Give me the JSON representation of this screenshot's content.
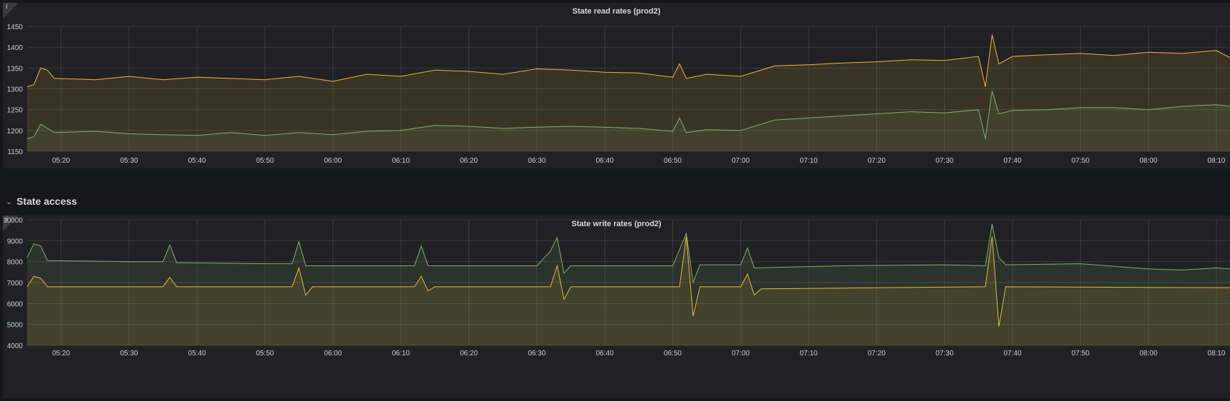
{
  "row": {
    "title": "State access"
  },
  "panels": [
    {
      "title": "State read rates (prod2)",
      "info_glyph": "i"
    },
    {
      "title": "State write rates (prod2)",
      "info_glyph": "i"
    }
  ],
  "chart_data": [
    {
      "type": "area",
      "title": "State read rates (prod2)",
      "x_ticks": [
        "05:20",
        "05:30",
        "05:40",
        "05:50",
        "06:00",
        "06:10",
        "06:20",
        "06:30",
        "06:40",
        "06:50",
        "07:00",
        "07:10",
        "07:20",
        "07:30",
        "07:40",
        "07:50",
        "08:00",
        "08:10"
      ],
      "x_range": [
        "05:15",
        "08:12"
      ],
      "y_ticks": [
        1150,
        1200,
        1250,
        1300,
        1350,
        1400,
        1450
      ],
      "ylim": [
        1150,
        1450
      ],
      "grid": true,
      "series": [
        {
          "color": "#eab839",
          "points": [
            [
              "05:15",
              1305
            ],
            [
              "05:16",
              1310
            ],
            [
              "05:17",
              1350
            ],
            [
              "05:18",
              1345
            ],
            [
              "05:19",
              1325
            ],
            [
              "05:25",
              1322
            ],
            [
              "05:30",
              1330
            ],
            [
              "05:35",
              1322
            ],
            [
              "05:40",
              1328
            ],
            [
              "05:45",
              1325
            ],
            [
              "05:50",
              1322
            ],
            [
              "05:55",
              1330
            ],
            [
              "06:00",
              1318
            ],
            [
              "06:05",
              1335
            ],
            [
              "06:10",
              1330
            ],
            [
              "06:15",
              1345
            ],
            [
              "06:20",
              1342
            ],
            [
              "06:25",
              1335
            ],
            [
              "06:30",
              1348
            ],
            [
              "06:35",
              1345
            ],
            [
              "06:40",
              1340
            ],
            [
              "06:45",
              1338
            ],
            [
              "06:50",
              1328
            ],
            [
              "06:51",
              1360
            ],
            [
              "06:52",
              1325
            ],
            [
              "06:55",
              1335
            ],
            [
              "07:00",
              1330
            ],
            [
              "07:05",
              1355
            ],
            [
              "07:10",
              1358
            ],
            [
              "07:15",
              1362
            ],
            [
              "07:20",
              1365
            ],
            [
              "07:25",
              1370
            ],
            [
              "07:30",
              1368
            ],
            [
              "07:35",
              1378
            ],
            [
              "07:36",
              1305
            ],
            [
              "07:37",
              1430
            ],
            [
              "07:38",
              1360
            ],
            [
              "07:40",
              1378
            ],
            [
              "07:45",
              1382
            ],
            [
              "07:50",
              1385
            ],
            [
              "07:55",
              1380
            ],
            [
              "08:00",
              1388
            ],
            [
              "08:05",
              1385
            ],
            [
              "08:10",
              1392
            ],
            [
              "08:12",
              1375
            ]
          ]
        },
        {
          "color": "#7eb26d",
          "points": [
            [
              "05:15",
              1180
            ],
            [
              "05:16",
              1185
            ],
            [
              "05:17",
              1215
            ],
            [
              "05:18",
              1205
            ],
            [
              "05:19",
              1195
            ],
            [
              "05:25",
              1198
            ],
            [
              "05:30",
              1192
            ],
            [
              "05:35",
              1190
            ],
            [
              "05:40",
              1188
            ],
            [
              "05:45",
              1195
            ],
            [
              "05:50",
              1188
            ],
            [
              "05:55",
              1195
            ],
            [
              "06:00",
              1190
            ],
            [
              "06:05",
              1198
            ],
            [
              "06:10",
              1200
            ],
            [
              "06:15",
              1212
            ],
            [
              "06:20",
              1210
            ],
            [
              "06:25",
              1205
            ],
            [
              "06:30",
              1208
            ],
            [
              "06:35",
              1210
            ],
            [
              "06:40",
              1208
            ],
            [
              "06:45",
              1205
            ],
            [
              "06:50",
              1198
            ],
            [
              "06:51",
              1230
            ],
            [
              "06:52",
              1195
            ],
            [
              "06:55",
              1202
            ],
            [
              "07:00",
              1200
            ],
            [
              "07:05",
              1225
            ],
            [
              "07:10",
              1230
            ],
            [
              "07:15",
              1235
            ],
            [
              "07:20",
              1240
            ],
            [
              "07:25",
              1245
            ],
            [
              "07:30",
              1242
            ],
            [
              "07:35",
              1250
            ],
            [
              "07:36",
              1180
            ],
            [
              "07:37",
              1295
            ],
            [
              "07:38",
              1240
            ],
            [
              "07:40",
              1248
            ],
            [
              "07:45",
              1250
            ],
            [
              "07:50",
              1255
            ],
            [
              "07:55",
              1255
            ],
            [
              "08:00",
              1250
            ],
            [
              "08:05",
              1258
            ],
            [
              "08:10",
              1262
            ],
            [
              "08:12",
              1258
            ]
          ]
        }
      ]
    },
    {
      "type": "area",
      "title": "State write rates (prod2)",
      "x_ticks": [
        "05:20",
        "05:30",
        "05:40",
        "05:50",
        "06:00",
        "06:10",
        "06:20",
        "06:30",
        "06:40",
        "06:50",
        "07:00",
        "07:10",
        "07:20",
        "07:30",
        "07:40",
        "07:50",
        "08:00",
        "08:10"
      ],
      "x_range": [
        "05:15",
        "08:12"
      ],
      "y_ticks": [
        4000,
        5000,
        6000,
        7000,
        8000,
        9000,
        10000
      ],
      "ylim": [
        4000,
        10000
      ],
      "grid": true,
      "series": [
        {
          "color": "#7eb26d",
          "points": [
            [
              "05:15",
              8200
            ],
            [
              "05:16",
              8850
            ],
            [
              "05:17",
              8750
            ],
            [
              "05:18",
              8050
            ],
            [
              "05:30",
              8000
            ],
            [
              "05:35",
              8000
            ],
            [
              "05:36",
              8800
            ],
            [
              "05:37",
              7950
            ],
            [
              "05:50",
              7900
            ],
            [
              "05:54",
              7900
            ],
            [
              "05:55",
              8950
            ],
            [
              "05:56",
              7800
            ],
            [
              "06:10",
              7800
            ],
            [
              "06:12",
              7800
            ],
            [
              "06:13",
              8750
            ],
            [
              "06:14",
              7800
            ],
            [
              "06:30",
              7800
            ],
            [
              "06:32",
              8500
            ],
            [
              "06:33",
              9150
            ],
            [
              "06:34",
              7450
            ],
            [
              "06:35",
              7800
            ],
            [
              "06:50",
              7800
            ],
            [
              "06:52",
              9350
            ],
            [
              "06:53",
              7000
            ],
            [
              "06:54",
              7850
            ],
            [
              "07:00",
              7850
            ],
            [
              "07:01",
              8650
            ],
            [
              "07:02",
              7700
            ],
            [
              "07:15",
              7800
            ],
            [
              "07:30",
              7850
            ],
            [
              "07:36",
              7800
            ],
            [
              "07:37",
              9800
            ],
            [
              "07:38",
              8200
            ],
            [
              "07:39",
              7850
            ],
            [
              "07:50",
              7900
            ],
            [
              "08:00",
              7650
            ],
            [
              "08:05",
              7600
            ],
            [
              "08:10",
              7700
            ],
            [
              "08:12",
              7650
            ]
          ]
        },
        {
          "color": "#eab839",
          "points": [
            [
              "05:15",
              6800
            ],
            [
              "05:16",
              7300
            ],
            [
              "05:17",
              7200
            ],
            [
              "05:18",
              6800
            ],
            [
              "05:35",
              6800
            ],
            [
              "05:36",
              7250
            ],
            [
              "05:37",
              6800
            ],
            [
              "05:54",
              6800
            ],
            [
              "05:55",
              7700
            ],
            [
              "05:56",
              6400
            ],
            [
              "05:57",
              6800
            ],
            [
              "06:12",
              6800
            ],
            [
              "06:13",
              7300
            ],
            [
              "06:14",
              6600
            ],
            [
              "06:15",
              6800
            ],
            [
              "06:32",
              6800
            ],
            [
              "06:33",
              7800
            ],
            [
              "06:34",
              6200
            ],
            [
              "06:35",
              6800
            ],
            [
              "06:51",
              6800
            ],
            [
              "06:52",
              9200
            ],
            [
              "06:53",
              5400
            ],
            [
              "06:54",
              6800
            ],
            [
              "07:00",
              6800
            ],
            [
              "07:01",
              7400
            ],
            [
              "07:02",
              6400
            ],
            [
              "07:03",
              6700
            ],
            [
              "07:36",
              6800
            ],
            [
              "07:37",
              9200
            ],
            [
              "07:38",
              4900
            ],
            [
              "07:39",
              6800
            ],
            [
              "08:12",
              6750
            ]
          ]
        }
      ]
    }
  ]
}
